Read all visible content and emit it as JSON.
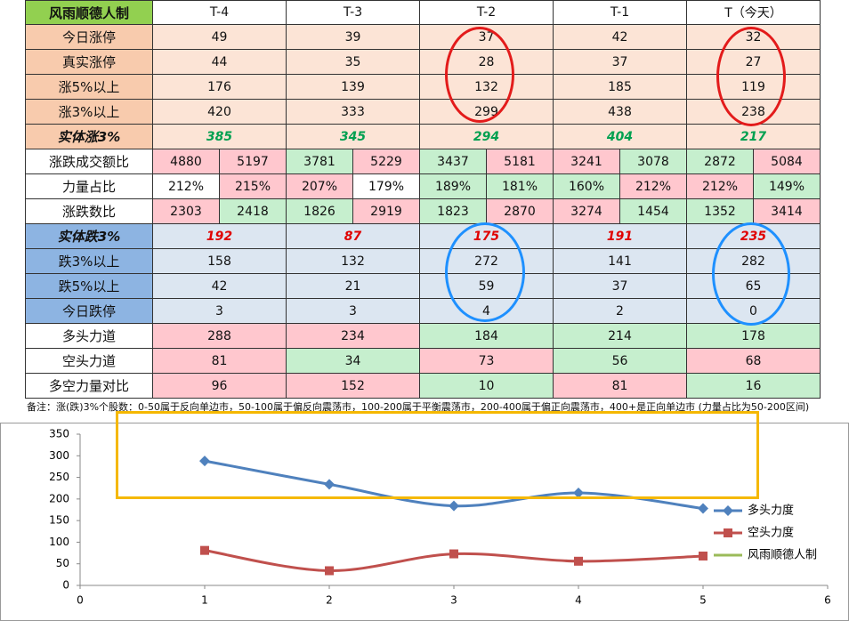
{
  "table": {
    "header": [
      "风雨顺德人制",
      "T-4",
      "T-3",
      "T-2",
      "T-1",
      "T（今天）"
    ],
    "rows": [
      {
        "label": "今日涨停",
        "values": [
          49,
          39,
          37,
          42,
          32
        ]
      },
      {
        "label": "真实涨停",
        "values": [
          44,
          35,
          28,
          37,
          27
        ]
      },
      {
        "label": "涨5%以上",
        "values": [
          176,
          139,
          132,
          185,
          119
        ]
      },
      {
        "label": "涨3%以上",
        "values": [
          420,
          333,
          299,
          438,
          238
        ]
      },
      {
        "label": "实体涨3%",
        "values": [
          385,
          345,
          294,
          404,
          217
        ]
      },
      {
        "label": "涨跌成交额比",
        "values": [
          [
            4880,
            5197
          ],
          [
            3781,
            5229
          ],
          [
            3437,
            5181
          ],
          [
            3241,
            3078
          ],
          [
            2872,
            5084
          ]
        ]
      },
      {
        "label": "力量占比",
        "values": [
          [
            "212%",
            "215%"
          ],
          [
            "207%",
            "179%"
          ],
          [
            "189%",
            "181%"
          ],
          [
            "160%",
            "212%"
          ],
          [
            "212%",
            "149%"
          ]
        ]
      },
      {
        "label": "涨跌数比",
        "values": [
          [
            2303,
            2418
          ],
          [
            1826,
            2919
          ],
          [
            1823,
            2870
          ],
          [
            3274,
            1454
          ],
          [
            1352,
            3414
          ]
        ]
      },
      {
        "label": "实体跌3%",
        "values": [
          192,
          87,
          175,
          191,
          235
        ]
      },
      {
        "label": "跌3%以上",
        "values": [
          158,
          132,
          272,
          141,
          282
        ]
      },
      {
        "label": "跌5%以上",
        "values": [
          42,
          21,
          59,
          37,
          65
        ]
      },
      {
        "label": "今日跌停",
        "values": [
          3,
          3,
          4,
          2,
          0
        ]
      },
      {
        "label": "多头力道",
        "values": [
          288,
          234,
          184,
          214,
          178
        ]
      },
      {
        "label": "空头力道",
        "values": [
          81,
          34,
          73,
          56,
          68
        ]
      },
      {
        "label": "多空力量对比",
        "values": [
          96,
          152,
          10,
          81,
          16
        ]
      }
    ],
    "note": "备注：涨(跌)3%个股数：0-50属于反向单边市，50-100属于偏反向震荡市，100-200属于平衡震荡市，200-400属于偏正向震荡市，400+是正向单边市 (力量占比为50-200区间)"
  },
  "chart_data": {
    "type": "line",
    "x": [
      1,
      2,
      3,
      4,
      5
    ],
    "series": [
      {
        "name": "多头力度",
        "color": "#4f81bd",
        "marker": "diamond",
        "values": [
          288,
          234,
          184,
          214,
          178
        ]
      },
      {
        "name": "空头力度",
        "color": "#c0504d",
        "marker": "square",
        "values": [
          81,
          34,
          73,
          56,
          68
        ]
      },
      {
        "name": "风雨顺德人制",
        "color": "#9bbb59",
        "values": [
          null,
          null,
          null,
          null,
          null
        ]
      }
    ],
    "xlim": [
      0,
      6
    ],
    "xticks": [
      0,
      1,
      2,
      3,
      4,
      5,
      6
    ],
    "ylim": [
      0,
      350
    ],
    "yticks": [
      0,
      50,
      100,
      150,
      200,
      250,
      300,
      350
    ],
    "smooth": true,
    "legend": "right"
  }
}
